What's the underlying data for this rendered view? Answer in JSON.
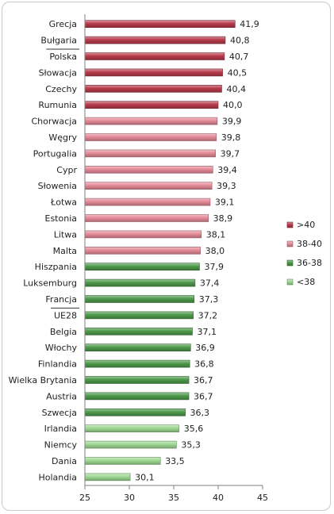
{
  "chart_data": {
    "type": "bar",
    "orientation": "horizontal",
    "title": "",
    "xlabel": "",
    "ylabel": "",
    "xlim": [
      25,
      45
    ],
    "x_ticks": [
      "25",
      "30",
      "35",
      "40",
      "45"
    ],
    "grid": false,
    "legend_position": "right",
    "categories": [
      "Grecja",
      "Bułgaria",
      "Polska",
      "Słowacja",
      "Czechy",
      "Rumunia",
      "Chorwacja",
      "Węgry",
      "Portugalia",
      "Cypr",
      "Słowenia",
      "Łotwa",
      "Estonia",
      "Litwa",
      "Malta",
      "Hiszpania",
      "Luksemburg",
      "Francja",
      "UE28",
      "Belgia",
      "Włochy",
      "Finlandia",
      "Wielka Brytania",
      "Austria",
      "Szwecja",
      "Irlandia",
      "Niemcy",
      "Dania",
      "Holandia"
    ],
    "values": [
      41.9,
      40.8,
      40.7,
      40.5,
      40.4,
      40.0,
      39.9,
      39.8,
      39.7,
      39.4,
      39.3,
      39.1,
      38.9,
      38.1,
      38.0,
      37.9,
      37.4,
      37.3,
      37.2,
      37.1,
      36.9,
      36.8,
      36.7,
      36.7,
      36.3,
      35.6,
      35.3,
      33.5,
      30.1
    ],
    "value_labels": [
      "41,9",
      "40,8",
      "40,7",
      "40,5",
      "40,4",
      "40,0",
      "39,9",
      "39,8",
      "39,7",
      "39,4",
      "39,3",
      "39,1",
      "38,9",
      "38,1",
      "38,0",
      "37,9",
      "37,4",
      "37,3",
      "37,2",
      "37,1",
      "36,9",
      "36,8",
      "36,7",
      "36,7",
      "36,3",
      "35,6",
      "35,3",
      "33,5",
      "30,1"
    ],
    "groups": [
      0,
      0,
      0,
      0,
      0,
      0,
      1,
      1,
      1,
      1,
      1,
      1,
      1,
      1,
      1,
      2,
      2,
      2,
      2,
      2,
      2,
      2,
      2,
      2,
      2,
      3,
      3,
      3,
      3
    ],
    "underlined_categories": [
      "Polska",
      "UE28"
    ],
    "legend": [
      {
        "label": ">40",
        "color": "#b83a4b"
      },
      {
        "label": "38-40",
        "color": "#e58b98"
      },
      {
        "label": "36-38",
        "color": "#4e9a4b"
      },
      {
        "label": "<38",
        "color": "#9fd993"
      }
    ]
  }
}
